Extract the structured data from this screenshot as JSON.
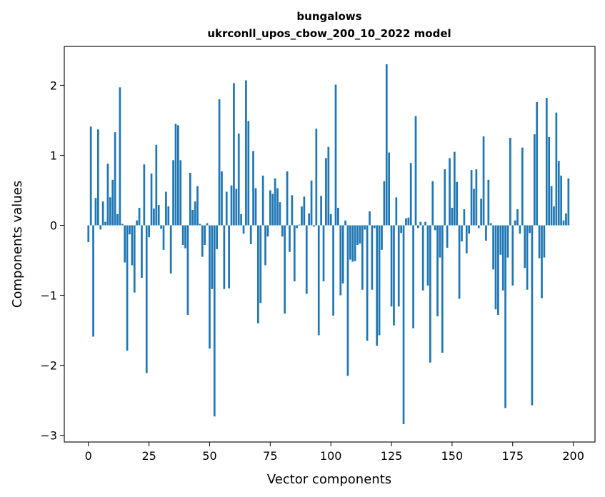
{
  "chart_data": {
    "type": "bar",
    "title": "bungalows",
    "subtitle": "ukrconll_upos_cbow_200_10_2022 model",
    "xlabel": "Vector components",
    "ylabel": "Components values",
    "xlim": [
      -9.95,
      208.95
    ],
    "ylim": [
      -3.095,
      2.555
    ],
    "xticks": [
      0,
      25,
      50,
      75,
      100,
      125,
      150,
      175,
      200
    ],
    "yticks": [
      -3,
      -2,
      -1,
      0,
      1,
      2
    ],
    "ytick_labels": [
      "−3",
      "−2",
      "−1",
      "0",
      "1",
      "2"
    ],
    "bar_color": "#1f77b4",
    "grid": false,
    "values": [
      -0.24,
      1.41,
      -1.59,
      0.39,
      1.37,
      -0.06,
      0.34,
      0.05,
      0.88,
      0.4,
      0.65,
      1.33,
      0.16,
      1.97,
      0.02,
      -0.53,
      -1.79,
      -0.13,
      -0.57,
      -0.96,
      0.07,
      0.25,
      -0.75,
      0.87,
      -2.11,
      -0.17,
      0.74,
      0.24,
      1.15,
      0.29,
      -0.05,
      -0.35,
      0.48,
      0.27,
      -0.69,
      0.93,
      1.45,
      1.43,
      0.93,
      -0.28,
      -0.33,
      -1.28,
      0.75,
      0.22,
      0.34,
      0.56,
      0.02,
      -0.45,
      -0.28,
      0.03,
      -1.76,
      -0.91,
      -2.73,
      -0.34,
      1.8,
      0.77,
      -0.91,
      0.48,
      -0.9,
      0.57,
      2.03,
      0.52,
      1.31,
      0.16,
      -0.12,
      2.07,
      1.49,
      -0.27,
      1.06,
      0.53,
      -1.4,
      -1.11,
      0.71,
      -0.57,
      -0.16,
      0.5,
      0.45,
      0.67,
      0.53,
      0.33,
      -0.16,
      -1.26,
      0.77,
      -0.38,
      0.43,
      -0.8,
      -0.04,
      0.01,
      0.27,
      0.41,
      -0.98,
      0.17,
      0.64,
      -0.02,
      1.38,
      -1.57,
      0.42,
      -0.8,
      0.96,
      1.12,
      0.16,
      -1.29,
      2.01,
      0.25,
      -1.0,
      -0.83,
      0.07,
      -2.15,
      -0.49,
      -0.52,
      -0.51,
      -0.28,
      -0.26,
      -0.92,
      -0.06,
      -1.65,
      0.2,
      -0.92,
      -0.04,
      -1.72,
      -1.57,
      -0.35,
      0.63,
      2.3,
      1.04,
      -1.16,
      -1.43,
      0.4,
      -1.16,
      -0.11,
      -2.84,
      0.1,
      0.11,
      0.89,
      -1.47,
      1.56,
      -0.04,
      0.05,
      -0.93,
      0.05,
      -0.86,
      -1.96,
      0.63,
      -0.07,
      -1.3,
      -0.46,
      -1.82,
      0.8,
      -0.32,
      0.96,
      0.25,
      1.05,
      0.62,
      -1.05,
      -0.23,
      0.23,
      -0.4,
      -0.12,
      0.79,
      0.52,
      0.8,
      -0.04,
      0.38,
      1.27,
      -0.22,
      0.65,
      0.03,
      -0.63,
      -1.2,
      -1.28,
      -0.42,
      -0.93,
      -2.61,
      -0.46,
      1.25,
      -0.86,
      0.07,
      0.23,
      -0.12,
      1.11,
      -0.61,
      -0.92,
      -0.11,
      -2.57,
      1.3,
      1.76,
      -0.47,
      -1.04,
      -0.46,
      1.82,
      1.26,
      0.56,
      0.27,
      1.61,
      0.92,
      0.71,
      0.07,
      0.17,
      0.67
    ]
  }
}
